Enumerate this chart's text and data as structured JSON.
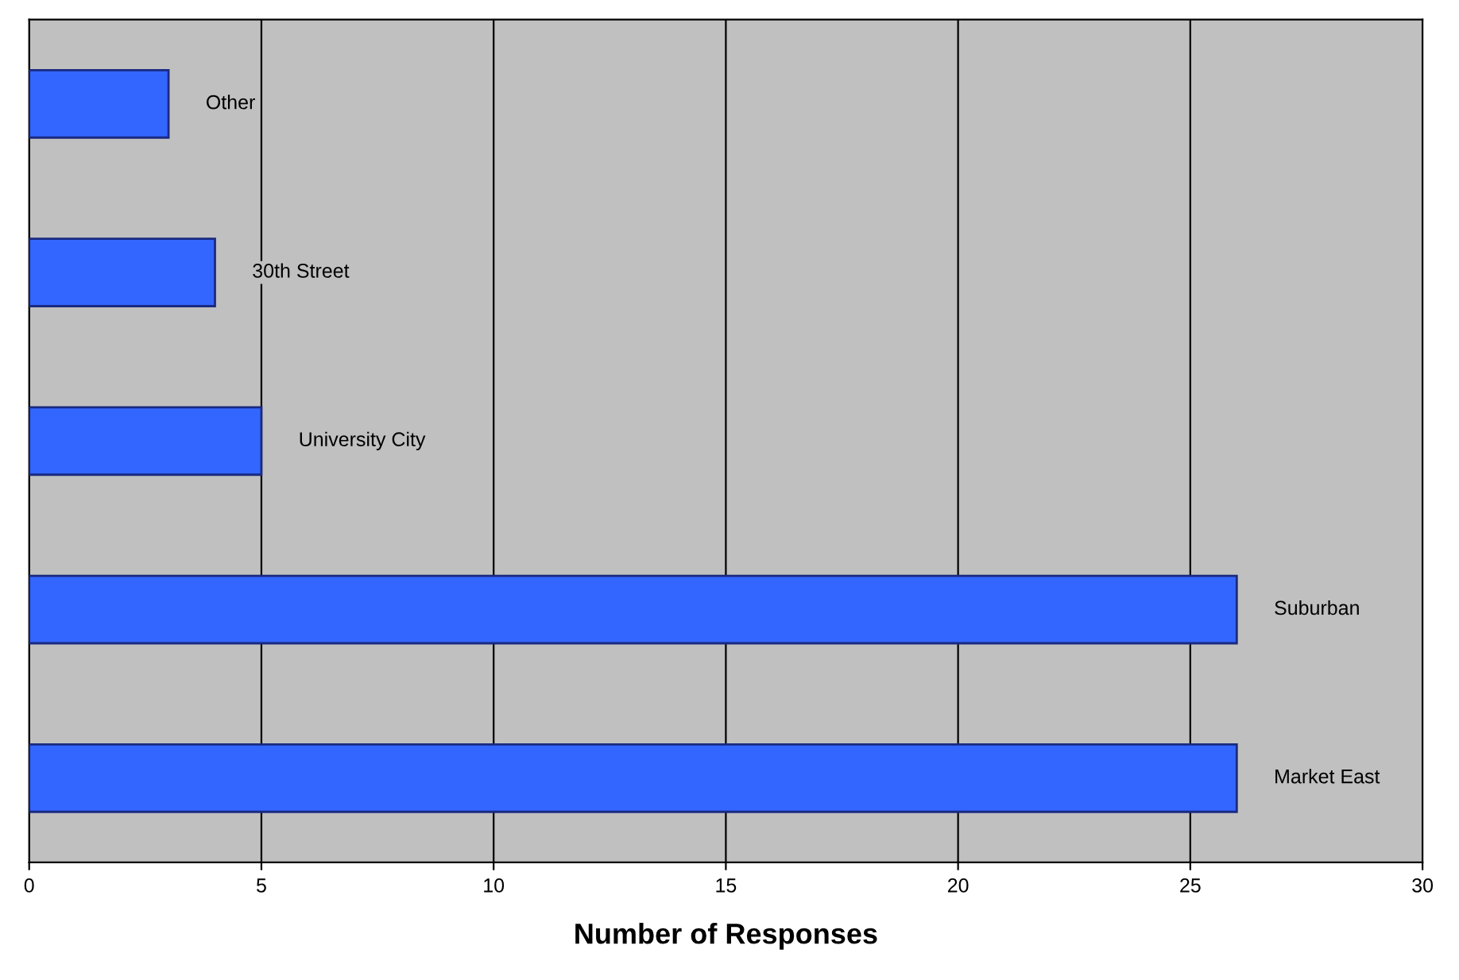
{
  "chart_data": {
    "type": "bar",
    "orientation": "horizontal",
    "xlabel": "Number of Responses",
    "categories": [
      "Other",
      "30th Street",
      "University City",
      "Suburban",
      "Market East"
    ],
    "values": [
      3,
      4,
      5,
      26,
      26
    ],
    "color": "#3366ff",
    "xlim": [
      0,
      30
    ],
    "xticks": [
      0,
      5,
      10,
      15,
      20,
      25,
      30
    ],
    "grid": "x",
    "tick_labels": "x"
  }
}
